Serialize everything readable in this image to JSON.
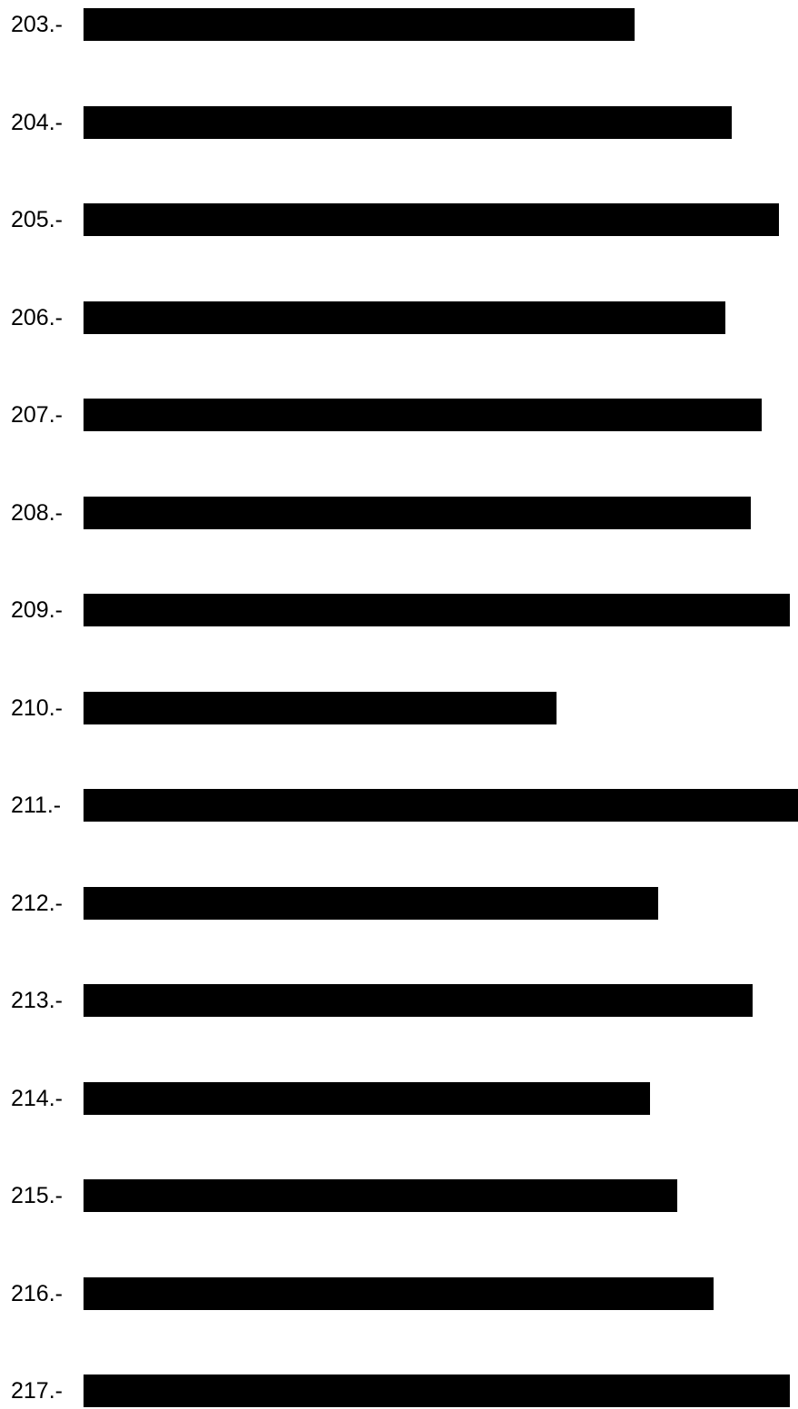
{
  "items": [
    {
      "label": "203.-",
      "redaction_fraction": 0.7715
    },
    {
      "label": "204.-",
      "redaction_fraction": 0.9076
    },
    {
      "label": "205.-",
      "redaction_fraction": 0.9733
    },
    {
      "label": "206.-",
      "redaction_fraction": 0.8983
    },
    {
      "label": "207.-",
      "redaction_fraction": 0.9491
    },
    {
      "label": "208.-",
      "redaction_fraction": 0.9339
    },
    {
      "label": "209.-",
      "redaction_fraction": 0.9885
    },
    {
      "label": "210.-",
      "redaction_fraction": 0.662
    },
    {
      "label": "211.-",
      "redaction_fraction": 1.0
    },
    {
      "label": "212.-",
      "redaction_fraction": 0.8043
    },
    {
      "label": "213.-",
      "redaction_fraction": 0.9365
    },
    {
      "label": "214.-",
      "redaction_fraction": 0.7929
    },
    {
      "label": "215.-",
      "redaction_fraction": 0.831
    },
    {
      "label": "216.-",
      "redaction_fraction": 0.8818
    },
    {
      "label": "217.-",
      "redaction_fraction": 0.9885
    }
  ],
  "colors": {
    "text": "#000000",
    "redaction": "#000000",
    "background": "#ffffff"
  }
}
